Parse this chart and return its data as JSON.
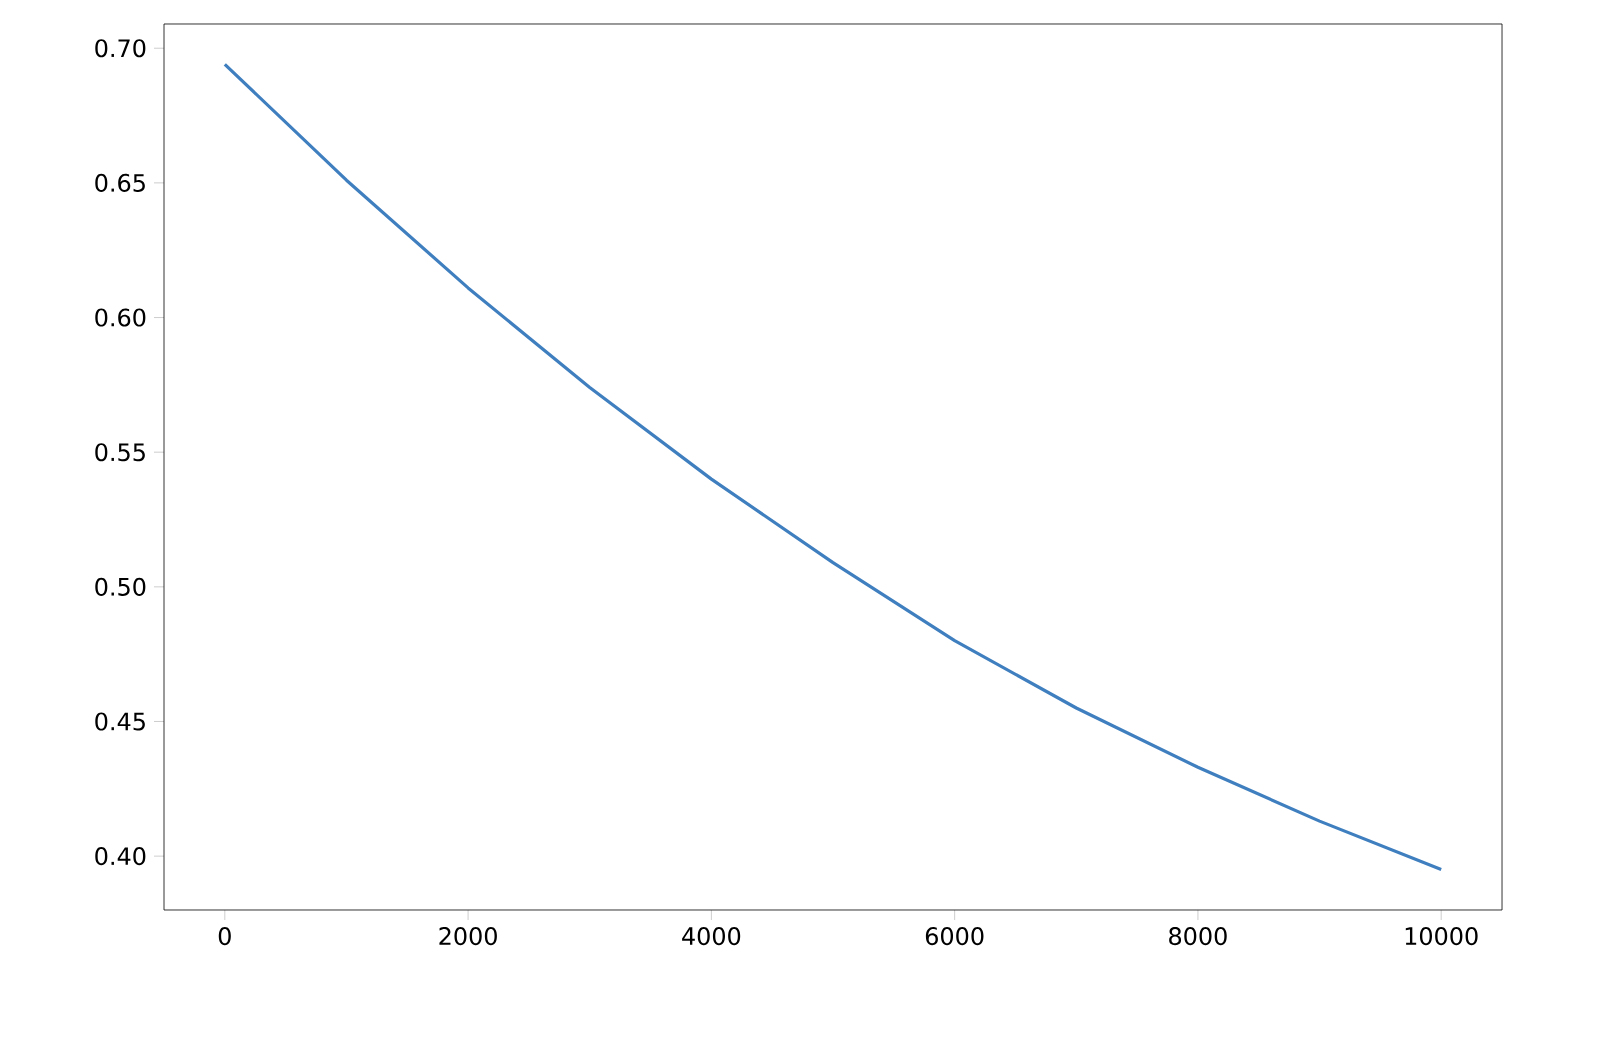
{
  "chart_data": {
    "type": "line",
    "x": [
      0,
      1000,
      2000,
      3000,
      4000,
      5000,
      6000,
      7000,
      8000,
      9000,
      10000
    ],
    "series": [
      {
        "color": "#3f7fbf",
        "values": [
          0.694,
          0.651,
          0.611,
          0.574,
          0.54,
          0.509,
          0.48,
          0.455,
          0.433,
          0.413,
          0.395
        ]
      }
    ],
    "xlim": [
      -500,
      10500
    ],
    "ylim": [
      0.38,
      0.709
    ],
    "xticks": [
      0,
      2000,
      4000,
      6000,
      8000,
      10000
    ],
    "yticks": [
      {
        "value": 0.4,
        "label": "0.40"
      },
      {
        "value": 0.45,
        "label": "0.45"
      },
      {
        "value": 0.5,
        "label": "0.50"
      },
      {
        "value": 0.55,
        "label": "0.55"
      },
      {
        "value": 0.6,
        "label": "0.60"
      },
      {
        "value": 0.65,
        "label": "0.65"
      },
      {
        "value": 0.7,
        "label": "0.70"
      }
    ]
  }
}
